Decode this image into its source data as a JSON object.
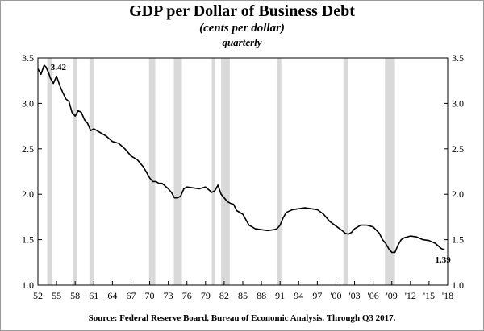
{
  "chart_data": {
    "type": "line",
    "title": "GDP per Dollar of Business Debt",
    "subtitle": "(cents per dollar)",
    "frequency": "quarterly",
    "source": "Source:  Federal Reserve Board, Bureau of Economic Analysis.  Through Q3 2017.",
    "ylim": [
      1.0,
      3.5
    ],
    "xlim": [
      1952,
      2018
    ],
    "y_ticks": [
      "1.0",
      "1.5",
      "2.0",
      "2.5",
      "3.0",
      "3.5"
    ],
    "x_ticks": [
      {
        "year": 1952,
        "label": "52"
      },
      {
        "year": 1955,
        "label": "55"
      },
      {
        "year": 1958,
        "label": "58"
      },
      {
        "year": 1961,
        "label": "61"
      },
      {
        "year": 1964,
        "label": "64"
      },
      {
        "year": 1967,
        "label": "67"
      },
      {
        "year": 1970,
        "label": "70"
      },
      {
        "year": 1973,
        "label": "73"
      },
      {
        "year": 1976,
        "label": "76"
      },
      {
        "year": 1979,
        "label": "79"
      },
      {
        "year": 1982,
        "label": "82"
      },
      {
        "year": 1985,
        "label": "85"
      },
      {
        "year": 1988,
        "label": "88"
      },
      {
        "year": 1991,
        "label": "91"
      },
      {
        "year": 1994,
        "label": "94"
      },
      {
        "year": 1997,
        "label": "97"
      },
      {
        "year": 2000,
        "label": "'00"
      },
      {
        "year": 2003,
        "label": "'03"
      },
      {
        "year": 2006,
        "label": "'06"
      },
      {
        "year": 2009,
        "label": "'09"
      },
      {
        "year": 2012,
        "label": "'12"
      },
      {
        "year": 2015,
        "label": "'15"
      },
      {
        "year": 2018,
        "label": "'18"
      }
    ],
    "recessions": [
      [
        1953.5,
        1954.3
      ],
      [
        1957.6,
        1958.3
      ],
      [
        1960.3,
        1961.1
      ],
      [
        1969.9,
        1970.9
      ],
      [
        1973.9,
        1975.2
      ],
      [
        1980.0,
        1980.5
      ],
      [
        1981.5,
        1982.9
      ],
      [
        1990.5,
        1991.2
      ],
      [
        2001.2,
        2001.9
      ],
      [
        2007.9,
        2009.5
      ]
    ],
    "series": [
      {
        "x": [
          1952.0,
          1952.5,
          1953.0,
          1953.3,
          1953.7,
          1954.0,
          1954.5,
          1955.0,
          1955.5,
          1956.0,
          1956.5,
          1957.0,
          1957.5,
          1958.0,
          1958.5,
          1959.0,
          1959.5,
          1960.0,
          1960.5,
          1961.0,
          1961.5,
          1962.0,
          1963.0,
          1964.0,
          1965.0,
          1966.0,
          1967.0,
          1968.0,
          1969.0,
          1969.5,
          1970.0,
          1970.5,
          1971.0,
          1971.5,
          1972.0,
          1973.0,
          1973.5,
          1974.0,
          1974.5,
          1975.0,
          1975.5,
          1976.0,
          1977.0,
          1978.0,
          1979.0,
          1979.5,
          1980.0,
          1980.5,
          1981.0,
          1981.5,
          1982.0,
          1982.5,
          1983.0,
          1983.5,
          1984.0,
          1985.0,
          1986.0,
          1987.0,
          1988.0,
          1989.0,
          1990.0,
          1990.5,
          1991.0,
          1991.5,
          1992.0,
          1993.0,
          1994.0,
          1995.0,
          1996.0,
          1997.0,
          1998.0,
          1999.0,
          2000.0,
          2001.0,
          2001.5,
          2002.0,
          2002.5,
          2003.0,
          2004.0,
          2005.0,
          2006.0,
          2007.0,
          2007.5,
          2008.0,
          2008.5,
          2009.0,
          2009.5,
          2010.0,
          2010.5,
          2011.0,
          2012.0,
          2013.0,
          2014.0,
          2015.0,
          2016.0,
          2016.5,
          2017.0,
          2017.5
        ],
        "y": [
          3.38,
          3.32,
          3.42,
          3.4,
          3.34,
          3.28,
          3.22,
          3.3,
          3.2,
          3.12,
          3.05,
          3.02,
          2.9,
          2.86,
          2.92,
          2.9,
          2.82,
          2.78,
          2.7,
          2.72,
          2.7,
          2.68,
          2.64,
          2.58,
          2.56,
          2.5,
          2.42,
          2.38,
          2.3,
          2.24,
          2.18,
          2.14,
          2.14,
          2.12,
          2.12,
          2.06,
          2.02,
          1.96,
          1.96,
          1.98,
          2.06,
          2.08,
          2.07,
          2.06,
          2.08,
          2.05,
          2.02,
          2.04,
          2.1,
          2.0,
          1.96,
          1.92,
          1.9,
          1.89,
          1.82,
          1.78,
          1.66,
          1.62,
          1.61,
          1.6,
          1.61,
          1.62,
          1.66,
          1.74,
          1.8,
          1.83,
          1.84,
          1.85,
          1.84,
          1.83,
          1.78,
          1.7,
          1.65,
          1.6,
          1.57,
          1.56,
          1.58,
          1.62,
          1.66,
          1.66,
          1.64,
          1.57,
          1.5,
          1.46,
          1.4,
          1.36,
          1.36,
          1.44,
          1.5,
          1.52,
          1.54,
          1.53,
          1.5,
          1.49,
          1.46,
          1.43,
          1.4,
          1.39
        ]
      }
    ],
    "annotations": [
      {
        "text": "3.42",
        "year": 1953.0,
        "value": 3.42
      },
      {
        "text": "1.39",
        "year": 2017.5,
        "value": 1.39
      }
    ]
  },
  "colors": {
    "line": "#000000",
    "recession": "#d9d9d9",
    "frame": "#000000"
  }
}
